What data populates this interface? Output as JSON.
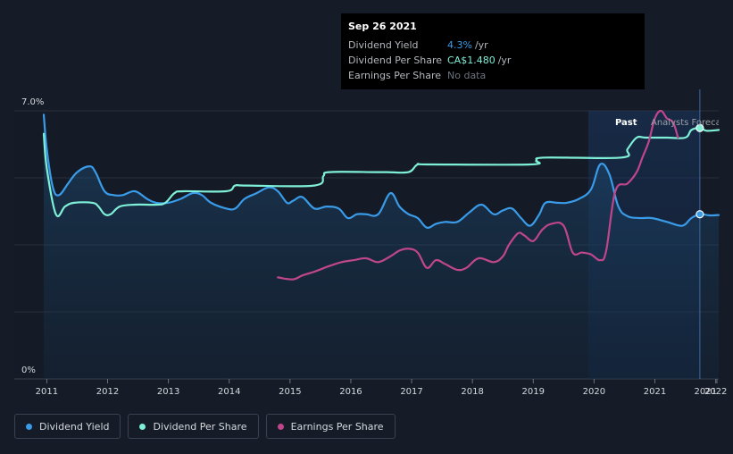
{
  "colors": {
    "background": "#151b27",
    "dividend_yield": "#3a9be8",
    "dividend_per_share": "#7ff0d8",
    "earnings_per_share": "#c0468c",
    "grid": "#2a303b"
  },
  "tooltip": {
    "date": "Sep 26 2021",
    "rows": [
      {
        "label": "Dividend Yield",
        "value": "4.3%",
        "unit": "/yr"
      },
      {
        "label": "Dividend Per Share",
        "value": "CA$1.480",
        "unit": "/yr"
      },
      {
        "label": "Earnings Per Share",
        "value": "No data",
        "unit": ""
      }
    ]
  },
  "legend": [
    {
      "label": "Dividend Yield",
      "color": "#3a9be8"
    },
    {
      "label": "Dividend Per Share",
      "color": "#7ff0d8"
    },
    {
      "label": "Earnings Per Share",
      "color": "#c0468c"
    }
  ],
  "chart_data": {
    "type": "line",
    "ylim": [
      0,
      7.0
    ],
    "y_tick_labels": [
      "7.0%",
      "0%"
    ],
    "xlim": [
      2010.95,
      2022.05
    ],
    "x_tick_labels": [
      "2011",
      "2012",
      "2013",
      "2014",
      "2015",
      "2016",
      "2017",
      "2018",
      "2019",
      "2020",
      "2021",
      "2022",
      "2021"
    ],
    "annotations": {
      "past_label": "Past",
      "forecast_label": "Analysts Forecasts",
      "cursor_x": 2021.74
    },
    "grid": true,
    "series": [
      {
        "name": "Dividend Yield",
        "points": [
          [
            2010.95,
            6.9
          ],
          [
            2011.0,
            6.0
          ],
          [
            2011.1,
            5.0
          ],
          [
            2011.2,
            4.8
          ],
          [
            2011.35,
            5.1
          ],
          [
            2011.5,
            5.4
          ],
          [
            2011.7,
            5.55
          ],
          [
            2011.8,
            5.4
          ],
          [
            2011.95,
            4.9
          ],
          [
            2012.1,
            4.8
          ],
          [
            2012.25,
            4.8
          ],
          [
            2012.45,
            4.9
          ],
          [
            2012.65,
            4.7
          ],
          [
            2012.8,
            4.6
          ],
          [
            2013.0,
            4.6
          ],
          [
            2013.2,
            4.7
          ],
          [
            2013.4,
            4.85
          ],
          [
            2013.55,
            4.8
          ],
          [
            2013.7,
            4.6
          ],
          [
            2013.95,
            4.45
          ],
          [
            2014.1,
            4.45
          ],
          [
            2014.25,
            4.7
          ],
          [
            2014.45,
            4.85
          ],
          [
            2014.65,
            5.0
          ],
          [
            2014.8,
            4.9
          ],
          [
            2014.95,
            4.6
          ],
          [
            2015.05,
            4.65
          ],
          [
            2015.2,
            4.75
          ],
          [
            2015.4,
            4.45
          ],
          [
            2015.6,
            4.5
          ],
          [
            2015.8,
            4.45
          ],
          [
            2015.95,
            4.2
          ],
          [
            2016.1,
            4.3
          ],
          [
            2016.25,
            4.3
          ],
          [
            2016.45,
            4.3
          ],
          [
            2016.65,
            4.85
          ],
          [
            2016.8,
            4.5
          ],
          [
            2016.95,
            4.3
          ],
          [
            2017.1,
            4.2
          ],
          [
            2017.25,
            3.95
          ],
          [
            2017.4,
            4.05
          ],
          [
            2017.55,
            4.1
          ],
          [
            2017.75,
            4.1
          ],
          [
            2017.95,
            4.35
          ],
          [
            2018.15,
            4.55
          ],
          [
            2018.35,
            4.3
          ],
          [
            2018.5,
            4.4
          ],
          [
            2018.65,
            4.45
          ],
          [
            2018.8,
            4.2
          ],
          [
            2018.95,
            4.0
          ],
          [
            2019.1,
            4.3
          ],
          [
            2019.2,
            4.6
          ],
          [
            2019.4,
            4.6
          ],
          [
            2019.55,
            4.6
          ],
          [
            2019.75,
            4.7
          ],
          [
            2019.95,
            4.95
          ],
          [
            2020.1,
            5.6
          ],
          [
            2020.25,
            5.35
          ],
          [
            2020.4,
            4.5
          ],
          [
            2020.55,
            4.25
          ],
          [
            2020.75,
            4.2
          ],
          [
            2020.95,
            4.2
          ],
          [
            2021.2,
            4.1
          ],
          [
            2021.45,
            4.0
          ],
          [
            2021.6,
            4.2
          ],
          [
            2021.74,
            4.3
          ],
          [
            2021.9,
            4.27
          ],
          [
            2022.05,
            4.28
          ]
        ]
      },
      {
        "name": "Dividend Per Share",
        "points": [
          [
            2010.95,
            6.4
          ],
          [
            2011.0,
            5.5
          ],
          [
            2011.15,
            4.3
          ],
          [
            2011.3,
            4.5
          ],
          [
            2011.45,
            4.6
          ],
          [
            2011.75,
            4.6
          ],
          [
            2011.85,
            4.5
          ],
          [
            2011.95,
            4.3
          ],
          [
            2012.05,
            4.3
          ],
          [
            2012.2,
            4.5
          ],
          [
            2012.45,
            4.55
          ],
          [
            2012.8,
            4.55
          ],
          [
            2012.95,
            4.6
          ],
          [
            2013.1,
            4.85
          ],
          [
            2013.25,
            4.9
          ],
          [
            2013.95,
            4.9
          ],
          [
            2014.1,
            5.05
          ],
          [
            2014.3,
            5.05
          ],
          [
            2015.4,
            5.05
          ],
          [
            2015.55,
            5.3
          ],
          [
            2015.65,
            5.4
          ],
          [
            2016.4,
            5.4
          ],
          [
            2016.6,
            5.4
          ],
          [
            2016.95,
            5.4
          ],
          [
            2017.1,
            5.6
          ],
          [
            2017.3,
            5.6
          ],
          [
            2018.95,
            5.6
          ],
          [
            2019.05,
            5.7
          ],
          [
            2019.2,
            5.78
          ],
          [
            2020.45,
            5.78
          ],
          [
            2020.55,
            6.0
          ],
          [
            2020.7,
            6.3
          ],
          [
            2020.85,
            6.3
          ],
          [
            2021.2,
            6.3
          ],
          [
            2021.5,
            6.3
          ],
          [
            2021.6,
            6.5
          ],
          [
            2021.74,
            6.55
          ],
          [
            2021.85,
            6.48
          ],
          [
            2022.05,
            6.5
          ]
        ]
      },
      {
        "name": "Earnings Per Share",
        "points": [
          [
            2014.8,
            2.65
          ],
          [
            2015.05,
            2.6
          ],
          [
            2015.2,
            2.7
          ],
          [
            2015.4,
            2.8
          ],
          [
            2015.65,
            2.95
          ],
          [
            2015.85,
            3.05
          ],
          [
            2016.05,
            3.1
          ],
          [
            2016.25,
            3.15
          ],
          [
            2016.45,
            3.05
          ],
          [
            2016.65,
            3.2
          ],
          [
            2016.8,
            3.35
          ],
          [
            2016.95,
            3.4
          ],
          [
            2017.1,
            3.3
          ],
          [
            2017.25,
            2.9
          ],
          [
            2017.4,
            3.1
          ],
          [
            2017.55,
            3.0
          ],
          [
            2017.75,
            2.85
          ],
          [
            2017.9,
            2.9
          ],
          [
            2018.1,
            3.15
          ],
          [
            2018.35,
            3.05
          ],
          [
            2018.5,
            3.2
          ],
          [
            2018.6,
            3.5
          ],
          [
            2018.75,
            3.8
          ],
          [
            2018.85,
            3.75
          ],
          [
            2019.0,
            3.6
          ],
          [
            2019.15,
            3.9
          ],
          [
            2019.3,
            4.05
          ],
          [
            2019.5,
            4.0
          ],
          [
            2019.65,
            3.3
          ],
          [
            2019.8,
            3.3
          ],
          [
            2019.95,
            3.25
          ],
          [
            2020.1,
            3.1
          ],
          [
            2020.2,
            3.35
          ],
          [
            2020.35,
            4.9
          ],
          [
            2020.55,
            5.1
          ],
          [
            2020.7,
            5.4
          ],
          [
            2020.8,
            5.8
          ],
          [
            2020.9,
            6.2
          ],
          [
            2021.0,
            6.8
          ],
          [
            2021.1,
            7.0
          ],
          [
            2021.2,
            6.8
          ],
          [
            2021.3,
            6.7
          ],
          [
            2021.38,
            6.3
          ]
        ]
      }
    ],
    "markers": [
      {
        "series": "Dividend Yield",
        "x": 2021.74,
        "y": 4.3
      },
      {
        "series": "Dividend Per Share",
        "x": 2021.74,
        "y": 6.55
      }
    ]
  }
}
